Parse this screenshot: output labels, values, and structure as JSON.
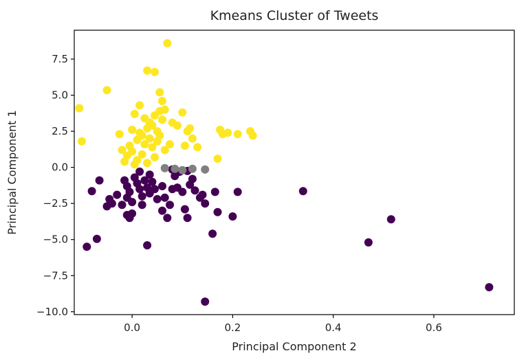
{
  "chart_data": {
    "type": "scatter",
    "title": "Kmeans Cluster of Tweets",
    "xlabel": "Principal Component 2",
    "ylabel": "Principal Component 1",
    "xlim": [
      -0.115,
      0.76
    ],
    "ylim": [
      -10.2,
      9.5
    ],
    "xticks": [
      0.0,
      0.2,
      0.4,
      0.6
    ],
    "xtick_labels": [
      "0.0",
      "0.2",
      "0.4",
      "0.6"
    ],
    "yticks": [
      7.5,
      5.0,
      2.5,
      0.0,
      -2.5,
      -5.0,
      -7.5,
      -10.0
    ],
    "ytick_labels": [
      "7.5",
      "5.0",
      "2.5",
      "0.0",
      "−2.5",
      "−5.0",
      "−7.5",
      "−10.0"
    ],
    "grid": false,
    "legend": false,
    "colors": {
      "cluster_0": "#440154",
      "cluster_1": "#fde725",
      "cluster_2": "#808080"
    },
    "series": [
      {
        "color": "#440154",
        "points": [
          [
            -0.09,
            -5.5
          ],
          [
            -0.07,
            -4.95
          ],
          [
            -0.08,
            -1.65
          ],
          [
            -0.065,
            -0.9
          ],
          [
            -0.05,
            -2.7
          ],
          [
            -0.04,
            -2.5
          ],
          [
            -0.045,
            -2.2
          ],
          [
            -0.03,
            -1.9
          ],
          [
            -0.02,
            -2.6
          ],
          [
            -0.015,
            -0.9
          ],
          [
            -0.01,
            -1.3
          ],
          [
            -0.005,
            -1.7
          ],
          [
            -0.01,
            -2.1
          ],
          [
            0.0,
            -2.4
          ],
          [
            0.005,
            -0.7
          ],
          [
            0.01,
            -1.1
          ],
          [
            0.015,
            -1.5
          ],
          [
            0.02,
            -2.0
          ],
          [
            0.02,
            -2.6
          ],
          [
            0.025,
            -0.9
          ],
          [
            0.03,
            -1.4
          ],
          [
            0.035,
            -1.8
          ],
          [
            0.035,
            -0.5
          ],
          [
            0.04,
            -1.0
          ],
          [
            0.045,
            -1.5
          ],
          [
            0.05,
            -2.2
          ],
          [
            0.015,
            -0.3
          ],
          [
            0.0,
            -3.2
          ],
          [
            -0.01,
            -3.3
          ],
          [
            -0.005,
            -3.5
          ],
          [
            0.03,
            -5.4
          ],
          [
            0.06,
            -1.3
          ],
          [
            0.06,
            -3.0
          ],
          [
            0.065,
            -2.1
          ],
          [
            0.07,
            -3.5
          ],
          [
            0.075,
            -2.6
          ],
          [
            0.08,
            -1.5
          ],
          [
            0.085,
            -0.6
          ],
          [
            0.09,
            -1.4
          ],
          [
            0.095,
            -0.3
          ],
          [
            0.1,
            -1.7
          ],
          [
            0.105,
            -2.9
          ],
          [
            0.11,
            -3.5
          ],
          [
            0.115,
            -1.2
          ],
          [
            0.12,
            -0.8
          ],
          [
            0.125,
            -1.6
          ],
          [
            0.135,
            -2.1
          ],
          [
            0.14,
            -1.9
          ],
          [
            0.145,
            -2.5
          ],
          [
            0.16,
            -4.6
          ],
          [
            0.165,
            -1.7
          ],
          [
            0.17,
            -3.1
          ],
          [
            0.2,
            -3.4
          ],
          [
            0.21,
            -1.7
          ],
          [
            0.145,
            -9.3
          ],
          [
            0.34,
            -1.65
          ],
          [
            0.47,
            -5.2
          ],
          [
            0.515,
            -3.6
          ],
          [
            0.71,
            -8.3
          ],
          [
            0.08,
            -0.15
          ],
          [
            0.09,
            -0.35
          ],
          [
            0.11,
            -0.25
          ]
        ]
      },
      {
        "color": "#fde725",
        "points": [
          [
            -0.105,
            4.1
          ],
          [
            -0.1,
            1.8
          ],
          [
            -0.05,
            5.35
          ],
          [
            0.07,
            8.6
          ],
          [
            0.03,
            6.7
          ],
          [
            0.045,
            6.6
          ],
          [
            0.055,
            5.2
          ],
          [
            0.06,
            4.6
          ],
          [
            0.015,
            4.3
          ],
          [
            0.005,
            3.7
          ],
          [
            0.025,
            3.4
          ],
          [
            0.035,
            3.1
          ],
          [
            0.04,
            2.9
          ],
          [
            0.045,
            3.6
          ],
          [
            0.05,
            2.5
          ],
          [
            0.055,
            3.9
          ],
          [
            0.06,
            3.3
          ],
          [
            0.065,
            4.0
          ],
          [
            0.02,
            2.2
          ],
          [
            0.03,
            2.7
          ],
          [
            0.01,
            1.9
          ],
          [
            0.015,
            2.4
          ],
          [
            -0.005,
            1.5
          ],
          [
            0.0,
            2.6
          ],
          [
            0.025,
            1.6
          ],
          [
            0.035,
            2.0
          ],
          [
            0.04,
            1.4
          ],
          [
            0.05,
            1.8
          ],
          [
            0.055,
            2.2
          ],
          [
            -0.01,
            0.8
          ],
          [
            0.0,
            1.1
          ],
          [
            0.01,
            0.5
          ],
          [
            0.02,
            0.9
          ],
          [
            0.03,
            0.3
          ],
          [
            -0.02,
            1.2
          ],
          [
            -0.015,
            0.4
          ],
          [
            0.005,
            0.2
          ],
          [
            0.045,
            0.7
          ],
          [
            0.065,
            1.2
          ],
          [
            0.075,
            1.6
          ],
          [
            0.1,
            3.8
          ],
          [
            0.11,
            2.5
          ],
          [
            0.09,
            2.9
          ],
          [
            0.105,
            1.5
          ],
          [
            0.12,
            2.0
          ],
          [
            0.13,
            1.4
          ],
          [
            0.115,
            2.7
          ],
          [
            0.17,
            0.6
          ],
          [
            0.175,
            2.6
          ],
          [
            0.18,
            2.3
          ],
          [
            0.19,
            2.4
          ],
          [
            0.21,
            2.3
          ],
          [
            0.235,
            2.5
          ],
          [
            0.24,
            2.2
          ],
          [
            0.08,
            3.1
          ],
          [
            -0.025,
            2.3
          ]
        ]
      },
      {
        "color": "#808080",
        "points": [
          [
            0.065,
            -0.05
          ],
          [
            0.085,
            -0.1
          ],
          [
            0.1,
            -0.2
          ],
          [
            0.12,
            -0.1
          ],
          [
            0.145,
            -0.15
          ]
        ]
      }
    ]
  }
}
